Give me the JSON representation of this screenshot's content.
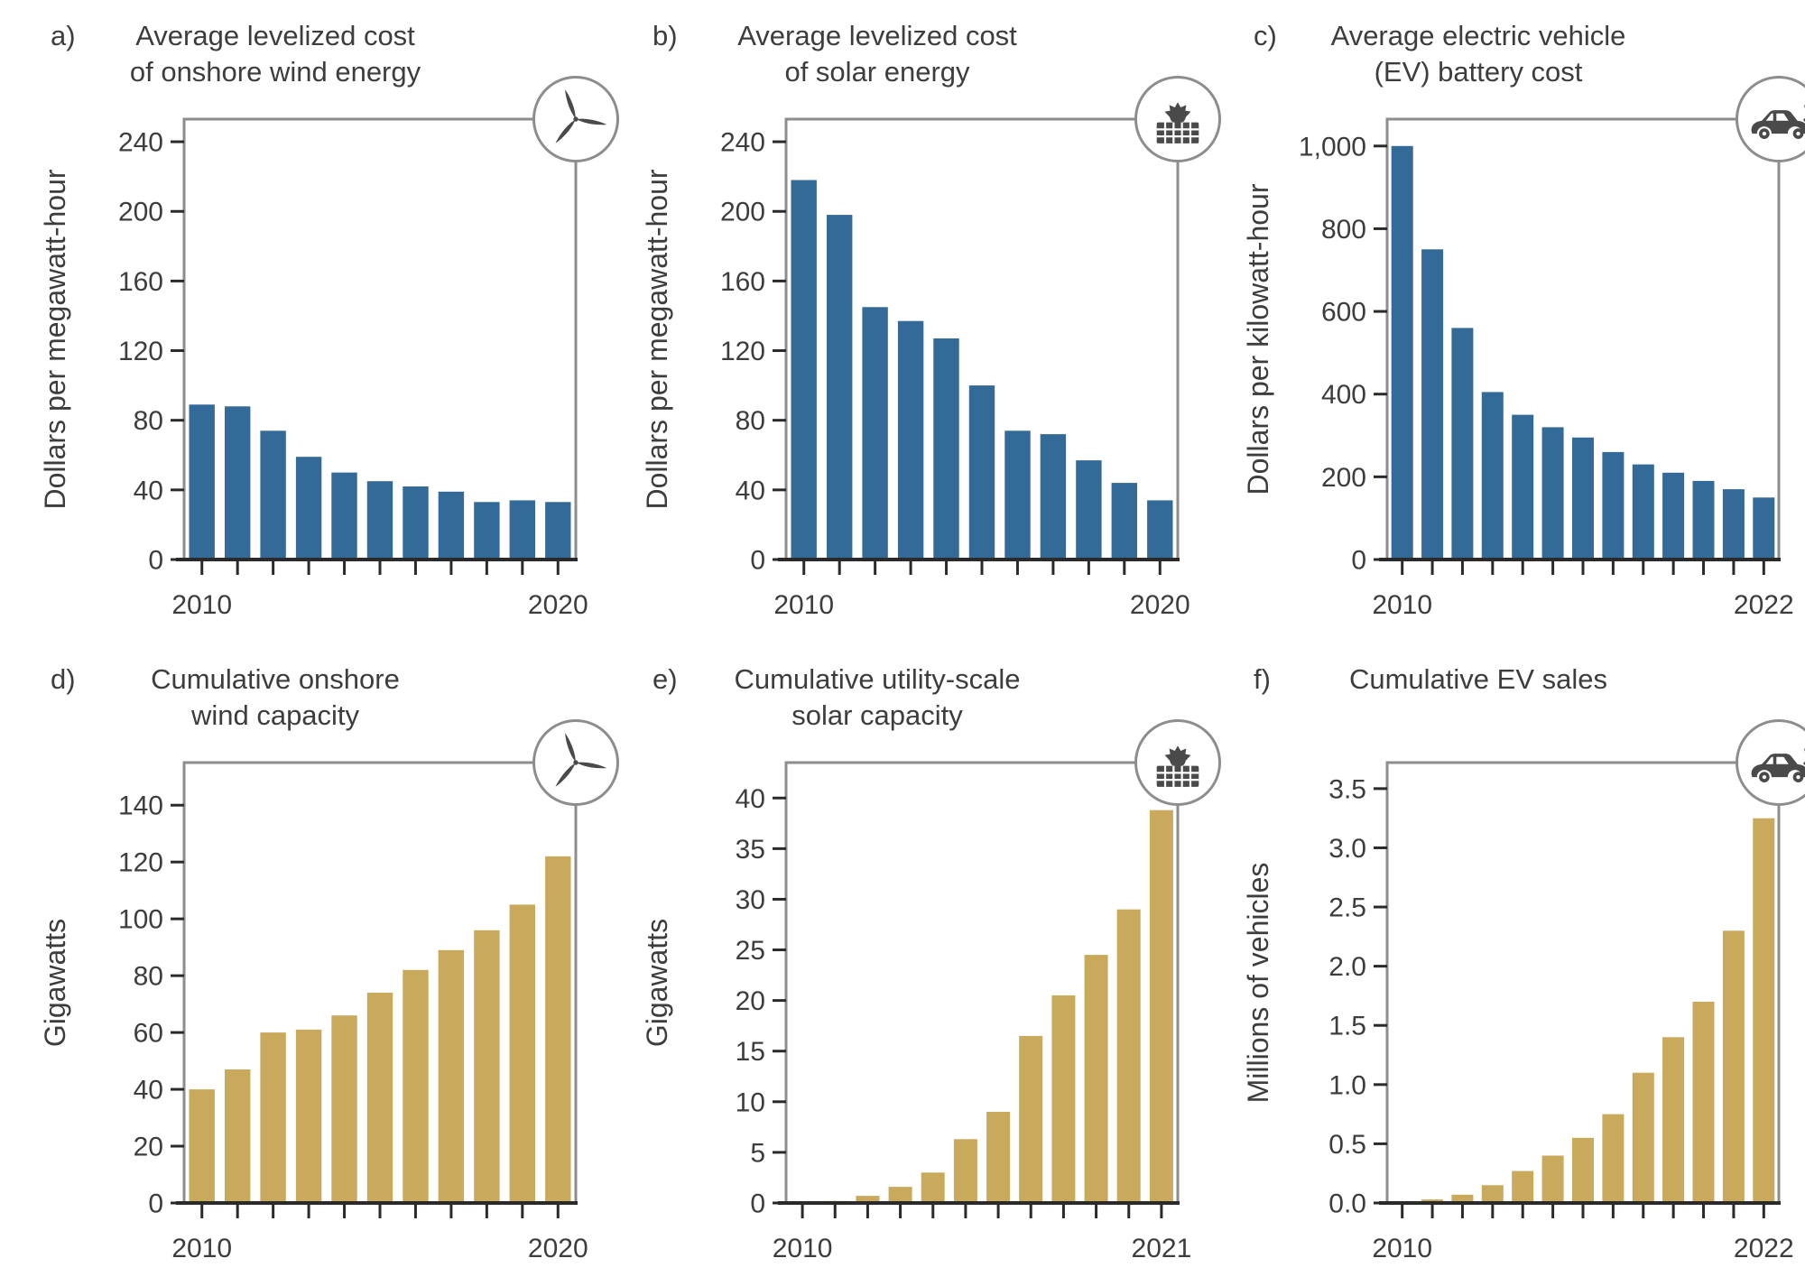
{
  "colors": {
    "blue": "#336a97",
    "tan": "#c9a95c",
    "axis": "#2a2a2a",
    "frame": "#8d8d8d",
    "text": "#3d3d3d",
    "icon": "#4a4a4a"
  },
  "panels": [
    {
      "letter": "a)",
      "icon": "wind-turbine"
    },
    {
      "letter": "b)",
      "icon": "solar-panel"
    },
    {
      "letter": "c)",
      "icon": "electric-car"
    },
    {
      "letter": "d)",
      "icon": "wind-turbine"
    },
    {
      "letter": "e)",
      "icon": "solar-panel"
    },
    {
      "letter": "f)",
      "icon": "electric-car"
    }
  ],
  "chart_data": [
    {
      "type": "bar",
      "title": "Average levelized cost of onshore wind energy",
      "title_lines": [
        "Average levelized cost",
        "of onshore wind energy"
      ],
      "xlabel": "",
      "ylabel": "Dollars per megawatt-hour",
      "bar_color": "blue",
      "categories": [
        "2010",
        "2011",
        "2012",
        "2013",
        "2014",
        "2015",
        "2016",
        "2017",
        "2018",
        "2019",
        "2020"
      ],
      "values": [
        89,
        88,
        74,
        59,
        50,
        45,
        42,
        39,
        33,
        34,
        33
      ],
      "ylim": [
        0,
        253
      ],
      "yticks": [
        {
          "v": 0,
          "label": "0"
        },
        {
          "v": 40,
          "label": "40"
        },
        {
          "v": 80,
          "label": "80"
        },
        {
          "v": 120,
          "label": "120"
        },
        {
          "v": 160,
          "label": "160"
        },
        {
          "v": 200,
          "label": "200"
        },
        {
          "v": 240,
          "label": "240"
        }
      ],
      "x_axis_labels_shown": [
        "2010",
        "2020"
      ],
      "grid": false,
      "legend": "none"
    },
    {
      "type": "bar",
      "title": "Average levelized cost of solar energy",
      "title_lines": [
        "Average levelized cost",
        "of solar energy"
      ],
      "xlabel": "",
      "ylabel": "Dollars per megawatt-hour",
      "bar_color": "blue",
      "categories": [
        "2010",
        "2011",
        "2012",
        "2013",
        "2014",
        "2015",
        "2016",
        "2017",
        "2018",
        "2019",
        "2020"
      ],
      "values": [
        218,
        198,
        145,
        137,
        127,
        100,
        74,
        72,
        57,
        44,
        34
      ],
      "ylim": [
        0,
        253
      ],
      "yticks": [
        {
          "v": 0,
          "label": "0"
        },
        {
          "v": 40,
          "label": "40"
        },
        {
          "v": 80,
          "label": "80"
        },
        {
          "v": 120,
          "label": "120"
        },
        {
          "v": 160,
          "label": "160"
        },
        {
          "v": 200,
          "label": "200"
        },
        {
          "v": 240,
          "label": "240"
        }
      ],
      "x_axis_labels_shown": [
        "2010",
        "2020"
      ],
      "grid": false,
      "legend": "none"
    },
    {
      "type": "bar",
      "title": "Average electric vehicle (EV) battery cost",
      "title_lines": [
        "Average electric vehicle",
        "(EV) battery cost"
      ],
      "xlabel": "",
      "ylabel": "Dollars per kilowatt-hour",
      "bar_color": "blue",
      "categories": [
        "2010",
        "2011",
        "2012",
        "2013",
        "2014",
        "2015",
        "2016",
        "2017",
        "2018",
        "2019",
        "2020",
        "2021",
        "2022"
      ],
      "values": [
        1000,
        750,
        560,
        405,
        350,
        320,
        295,
        260,
        230,
        210,
        190,
        170,
        150
      ],
      "ylim": [
        0,
        1065
      ],
      "yticks": [
        {
          "v": 0,
          "label": "0"
        },
        {
          "v": 200,
          "label": "200"
        },
        {
          "v": 400,
          "label": "400"
        },
        {
          "v": 600,
          "label": "600"
        },
        {
          "v": 800,
          "label": "800"
        },
        {
          "v": 1000,
          "label": "1,000"
        }
      ],
      "x_axis_labels_shown": [
        "2010",
        "2022"
      ],
      "grid": false,
      "legend": "none"
    },
    {
      "type": "bar",
      "title": "Cumulative onshore wind capacity",
      "title_lines": [
        "Cumulative onshore",
        "wind capacity"
      ],
      "xlabel": "",
      "ylabel": "Gigawatts",
      "bar_color": "tan",
      "categories": [
        "2010",
        "2011",
        "2012",
        "2013",
        "2014",
        "2015",
        "2016",
        "2017",
        "2018",
        "2019",
        "2020"
      ],
      "values": [
        40,
        47,
        60,
        61,
        66,
        74,
        82,
        89,
        96,
        105,
        122
      ],
      "ylim": [
        0,
        155
      ],
      "yticks": [
        {
          "v": 0,
          "label": "0"
        },
        {
          "v": 20,
          "label": "20"
        },
        {
          "v": 40,
          "label": "40"
        },
        {
          "v": 60,
          "label": "60"
        },
        {
          "v": 80,
          "label": "80"
        },
        {
          "v": 100,
          "label": "100"
        },
        {
          "v": 120,
          "label": "120"
        },
        {
          "v": 140,
          "label": "140"
        }
      ],
      "x_axis_labels_shown": [
        "2010",
        "2020"
      ],
      "grid": false,
      "legend": "none"
    },
    {
      "type": "bar",
      "title": "Cumulative utility-scale solar capacity",
      "title_lines": [
        "Cumulative utility-scale",
        "solar capacity"
      ],
      "xlabel": "",
      "ylabel": "Gigawatts",
      "bar_color": "tan",
      "categories": [
        "2010",
        "2011",
        "2012",
        "2013",
        "2014",
        "2015",
        "2016",
        "2017",
        "2018",
        "2019",
        "2020",
        "2021"
      ],
      "values": [
        0.05,
        0.2,
        0.7,
        1.6,
        3.0,
        6.3,
        9.0,
        16.5,
        20.5,
        24.5,
        29.0,
        38.8
      ],
      "ylim": [
        0,
        43.5
      ],
      "yticks": [
        {
          "v": 0,
          "label": "0"
        },
        {
          "v": 5,
          "label": "5"
        },
        {
          "v": 10,
          "label": "10"
        },
        {
          "v": 15,
          "label": "15"
        },
        {
          "v": 20,
          "label": "20"
        },
        {
          "v": 25,
          "label": "25"
        },
        {
          "v": 30,
          "label": "30"
        },
        {
          "v": 35,
          "label": "35"
        },
        {
          "v": 40,
          "label": "40"
        }
      ],
      "x_axis_labels_shown": [
        "2010",
        "2021"
      ],
      "grid": false,
      "legend": "none"
    },
    {
      "type": "bar",
      "title": "Cumulative EV sales",
      "title_lines": [
        "Cumulative EV sales"
      ],
      "xlabel": "",
      "ylabel": "Millions of vehicles",
      "bar_color": "tan",
      "categories": [
        "2010",
        "2011",
        "2012",
        "2013",
        "2014",
        "2015",
        "2016",
        "2017",
        "2018",
        "2019",
        "2020",
        "2021",
        "2022"
      ],
      "values": [
        0.01,
        0.03,
        0.07,
        0.15,
        0.27,
        0.4,
        0.55,
        0.75,
        1.1,
        1.4,
        1.7,
        2.3,
        3.25
      ],
      "ylim": [
        0,
        3.72
      ],
      "yticks": [
        {
          "v": 0,
          "label": "0.0"
        },
        {
          "v": 0.5,
          "label": "0.5"
        },
        {
          "v": 1.0,
          "label": "1.0"
        },
        {
          "v": 1.5,
          "label": "1.5"
        },
        {
          "v": 2.0,
          "label": "2.0"
        },
        {
          "v": 2.5,
          "label": "2.5"
        },
        {
          "v": 3.0,
          "label": "3.0"
        },
        {
          "v": 3.5,
          "label": "3.5"
        }
      ],
      "x_axis_labels_shown": [
        "2010",
        "2022"
      ],
      "grid": false,
      "legend": "none"
    }
  ]
}
